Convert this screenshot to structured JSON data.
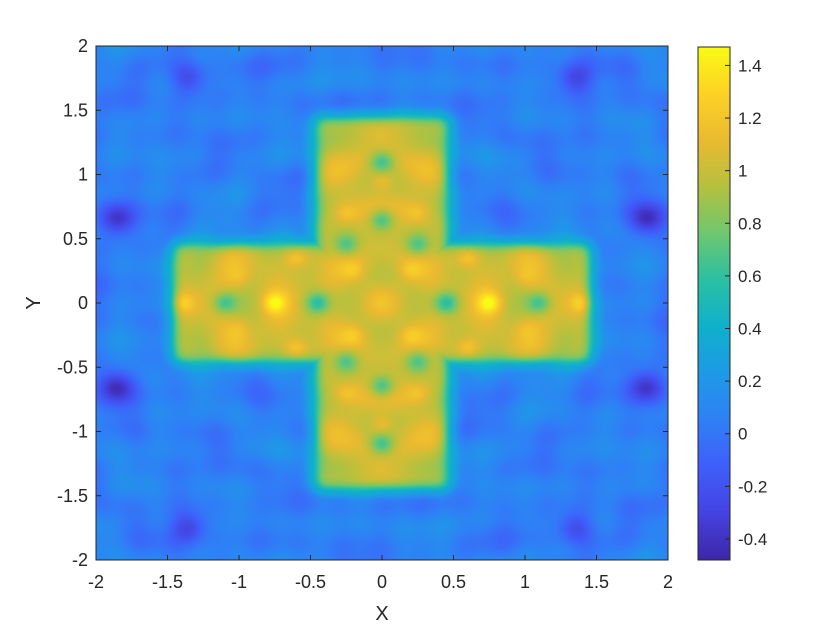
{
  "chart_data": {
    "type": "heatmap",
    "title": "",
    "xlabel": "X",
    "ylabel": "Y",
    "xlim": [
      -2,
      2
    ],
    "ylim": [
      -2,
      2
    ],
    "xticks": [
      -2,
      -1.5,
      -1,
      -0.5,
      0,
      0.5,
      1,
      1.5,
      2
    ],
    "xtick_labels": [
      "-2",
      "-1.5",
      "-1",
      "-0.5",
      "0",
      "0.5",
      "1",
      "1.5",
      "2"
    ],
    "yticks": [
      2,
      1.5,
      1,
      0.5,
      0,
      -0.5,
      -1,
      -1.5,
      -2
    ],
    "ytick_labels": [
      "2",
      "1.5",
      "1",
      "0.5",
      "0",
      "-0.5",
      "-1",
      "-1.5",
      "-2"
    ],
    "grid": false,
    "colormap": "parula",
    "colormap_stops": [
      "#3e26a8",
      "#4443e1",
      "#3f5efa",
      "#2f80f6",
      "#1e9ae6",
      "#0fb0cc",
      "#2ac0a3",
      "#6ec770",
      "#b4c13f",
      "#eaba30",
      "#fdd225",
      "#f9fb15"
    ],
    "color_limits": [
      -0.48,
      1.47
    ],
    "colorbar": {
      "position": "right",
      "ticks": [
        1.4,
        1.2,
        1,
        0.8,
        0.6,
        0.4,
        0.2,
        0,
        -0.2,
        -0.4
      ],
      "tick_labels": [
        "1.4",
        "1.2",
        "1",
        "0.8",
        "0.6",
        "0.4",
        "0.2",
        "0",
        "-0.2",
        "-0.4"
      ]
    },
    "field": {
      "shape": "cross",
      "cross_arms": [
        {
          "x": [
            -0.46,
            0.46
          ],
          "y": [
            -1.44,
            1.44
          ]
        },
        {
          "x": [
            -1.46,
            1.46
          ],
          "y": [
            -0.46,
            0.46
          ]
        }
      ],
      "inside_value": 1.05,
      "outside_value": 0.05,
      "hotspots": [
        {
          "x": -0.75,
          "y": 0.0,
          "value": 1.4
        },
        {
          "x": 0.75,
          "y": 0.0,
          "value": 1.4
        },
        {
          "x": -1.4,
          "y": 0.0,
          "value": 1.3
        },
        {
          "x": 1.4,
          "y": 0.0,
          "value": 1.3
        },
        {
          "x": 0.0,
          "y": 0.95,
          "value": 1.25
        },
        {
          "x": 0.0,
          "y": -0.95,
          "value": 1.25
        },
        {
          "x": -0.6,
          "y": 0.35,
          "value": 1.25
        },
        {
          "x": 0.6,
          "y": 0.35,
          "value": 1.25
        },
        {
          "x": -0.6,
          "y": -0.35,
          "value": 1.25
        },
        {
          "x": 0.6,
          "y": -0.35,
          "value": 1.25
        },
        {
          "x": -0.2,
          "y": 0.25,
          "value": 1.2
        },
        {
          "x": 0.2,
          "y": 0.25,
          "value": 1.2
        },
        {
          "x": -0.2,
          "y": -0.25,
          "value": 1.2
        },
        {
          "x": 0.2,
          "y": -0.25,
          "value": 1.2
        },
        {
          "x": -0.25,
          "y": 0.7,
          "value": 1.2
        },
        {
          "x": 0.25,
          "y": 0.7,
          "value": 1.2
        },
        {
          "x": -0.25,
          "y": -0.7,
          "value": 1.2
        },
        {
          "x": 0.25,
          "y": -0.7,
          "value": 1.2
        },
        {
          "x": -1.0,
          "y": 0.2,
          "value": 1.15
        },
        {
          "x": 1.0,
          "y": 0.2,
          "value": 1.15
        },
        {
          "x": -1.0,
          "y": -0.2,
          "value": 1.15
        },
        {
          "x": 1.0,
          "y": -0.2,
          "value": 1.15
        }
      ],
      "coldspots": [
        {
          "x": 0.0,
          "y": 0.65,
          "value": 0.6
        },
        {
          "x": 0.0,
          "y": -0.65,
          "value": 0.6
        },
        {
          "x": -0.45,
          "y": 0.0,
          "value": 0.6
        },
        {
          "x": 0.45,
          "y": 0.0,
          "value": 0.6
        },
        {
          "x": -1.1,
          "y": 0.0,
          "value": 0.65
        },
        {
          "x": 1.1,
          "y": 0.0,
          "value": 0.65
        },
        {
          "x": 0.0,
          "y": 1.1,
          "value": 0.65
        },
        {
          "x": 0.0,
          "y": -1.1,
          "value": 0.65
        },
        {
          "x": -0.25,
          "y": 0.45,
          "value": 0.7
        },
        {
          "x": 0.25,
          "y": 0.45,
          "value": 0.7
        },
        {
          "x": -0.25,
          "y": -0.45,
          "value": 0.7
        },
        {
          "x": 0.25,
          "y": -0.45,
          "value": 0.7
        }
      ],
      "background_lows": [
        {
          "x": -1.85,
          "y": 0.65,
          "value": -0.4
        },
        {
          "x": 1.85,
          "y": 0.65,
          "value": -0.4
        },
        {
          "x": -1.85,
          "y": -0.65,
          "value": -0.4
        },
        {
          "x": 1.85,
          "y": -0.65,
          "value": -0.4
        },
        {
          "x": 1.35,
          "y": 1.75,
          "value": -0.35
        },
        {
          "x": -1.35,
          "y": 1.75,
          "value": -0.35
        },
        {
          "x": 1.35,
          "y": -1.75,
          "value": -0.35
        },
        {
          "x": -1.35,
          "y": -1.75,
          "value": -0.35
        }
      ]
    }
  }
}
